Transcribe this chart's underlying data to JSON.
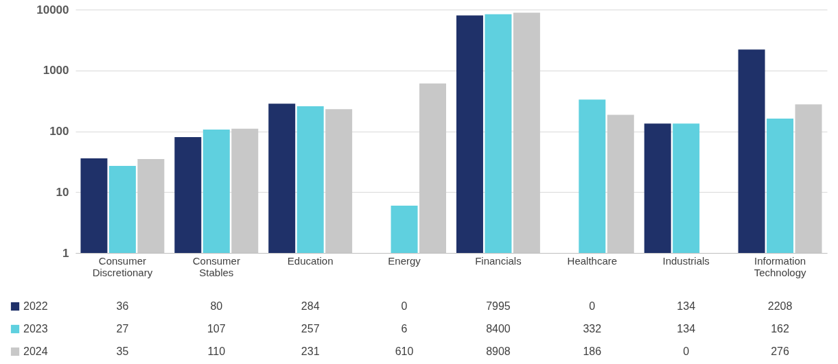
{
  "chart_data": {
    "type": "bar",
    "log": "y",
    "ylim": [
      1,
      10000
    ],
    "yticks": [
      1,
      10,
      100,
      1000,
      10000
    ],
    "grid": "y",
    "legend": "bottom left",
    "categories": [
      "Consumer Discretionary",
      "Consumer Stables",
      "Education",
      "Energy",
      "Financials",
      "Healthcare",
      "Industrials",
      "Information Technology"
    ],
    "series": [
      {
        "name": "2022",
        "color": "#1f3169",
        "values": [
          36,
          80,
          284,
          null,
          7995,
          null,
          134,
          2208
        ],
        "value_labels": [
          "36",
          "80",
          "284",
          "0",
          "7995",
          "0",
          "134",
          "2208"
        ]
      },
      {
        "name": "2023",
        "color": "#5fd0df",
        "values": [
          27,
          107,
          257,
          6,
          8400,
          332,
          134,
          162
        ],
        "value_labels": [
          "27",
          "107",
          "257",
          "6",
          "8400",
          "332",
          "134",
          "162"
        ]
      },
      {
        "name": "2024",
        "color": "#c8c8c8",
        "values": [
          35,
          110,
          231,
          610,
          8908,
          186,
          null,
          276
        ],
        "value_labels": [
          "35",
          "110",
          "231",
          "610",
          "8908",
          "186",
          "0",
          "276"
        ]
      }
    ]
  }
}
